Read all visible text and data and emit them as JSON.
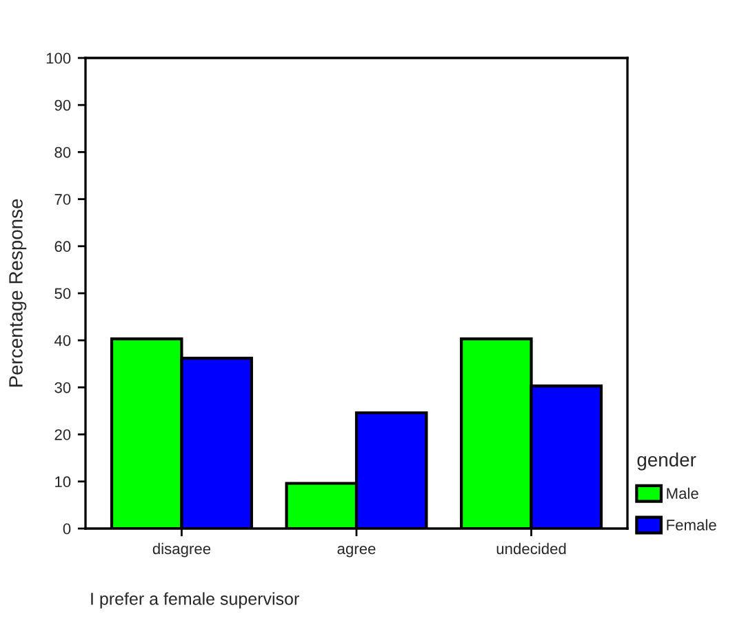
{
  "chart_data": {
    "type": "bar",
    "xlabel": "I prefer a female supervisor",
    "ylabel": "Percentage Response",
    "legend_title": "gender",
    "categories": [
      "disagree",
      "agree",
      "undecided"
    ],
    "series": [
      {
        "name": "Male",
        "color": "#00ff00",
        "values": [
          40.3,
          9.6,
          40.3
        ]
      },
      {
        "name": "Female",
        "color": "#0000ff",
        "values": [
          36.2,
          24.6,
          30.3
        ]
      }
    ],
    "ylim": [
      0,
      100
    ],
    "yticks": [
      0,
      10,
      20,
      30,
      40,
      50,
      60,
      70,
      80,
      90,
      100
    ],
    "grid": false,
    "legend": "bottom right"
  }
}
